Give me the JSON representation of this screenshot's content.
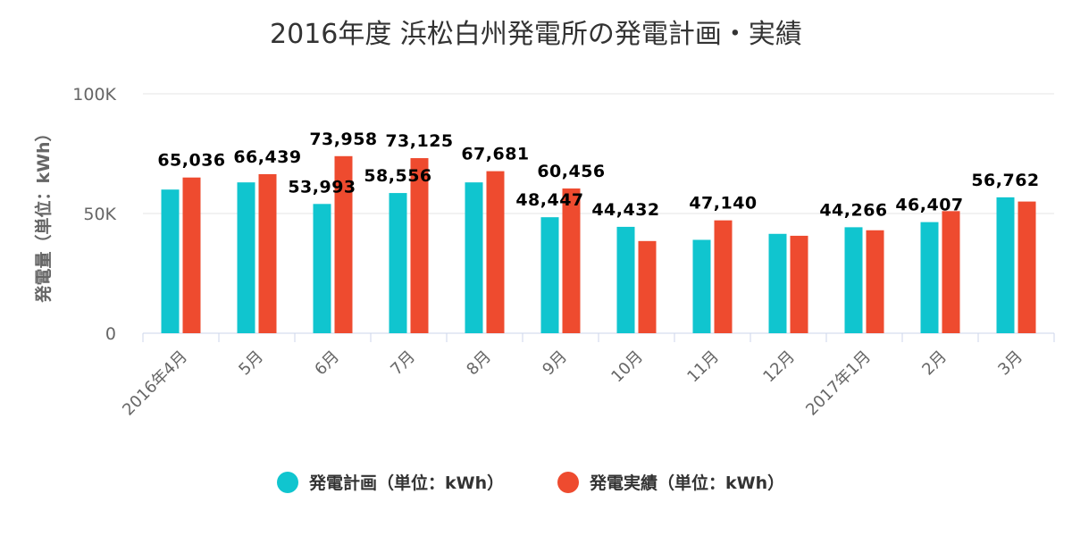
{
  "chart_data": {
    "type": "bar",
    "title": "2016年度 浜松白州発電所の発電計画・実績",
    "ylabel": "発電量（単位：kWh）",
    "xlabel": "",
    "categories": [
      "2016年4月",
      "5月",
      "6月",
      "7月",
      "8月",
      "9月",
      "10月",
      "11月",
      "12月",
      "2017年1月",
      "2月",
      "3月"
    ],
    "ylim": [
      0,
      100000
    ],
    "y_ticks": [
      {
        "value": 0,
        "label": "0"
      },
      {
        "value": 50000,
        "label": "50K"
      },
      {
        "value": 100000,
        "label": "100K"
      }
    ],
    "grid": true,
    "legend_position": "bottom-center",
    "series": [
      {
        "name": "発電計画（単位：kWh）",
        "color": "#10c5cf",
        "values": [
          60000,
          63000,
          53993,
          58556,
          63000,
          48447,
          44432,
          39000,
          41500,
          44266,
          46407,
          56762
        ],
        "labels": [
          "",
          "",
          "53,993",
          "58,556",
          "",
          "48,447",
          "44,432",
          "",
          "",
          "44,266",
          "46,407",
          "56,762"
        ]
      },
      {
        "name": "発電実績（単位：kWh）",
        "color": "#ee4b2f",
        "values": [
          65036,
          66439,
          73958,
          73125,
          67681,
          60456,
          38500,
          47140,
          40700,
          43000,
          51000,
          55000
        ],
        "labels": [
          "65,036",
          "66,439",
          "73,958",
          "73,125",
          "67,681",
          "60,456",
          "",
          "47,140",
          "",
          "",
          "",
          ""
        ]
      }
    ]
  }
}
